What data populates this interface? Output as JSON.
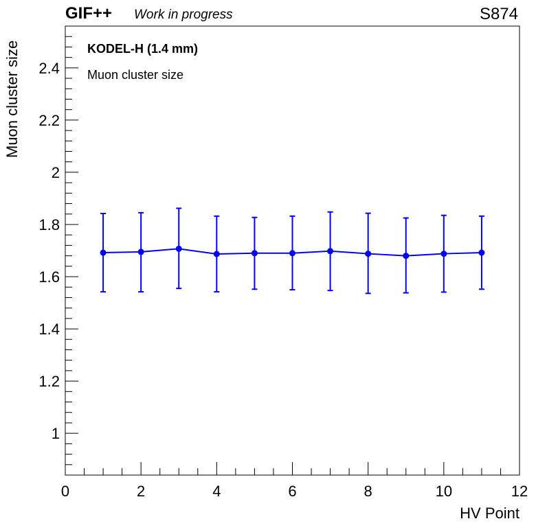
{
  "header": {
    "experiment": "GIF++",
    "status": "Work in progress",
    "run": "S874"
  },
  "annotations": {
    "detector": "KODEL-H (1.4 mm)",
    "quantity": "Muon cluster size"
  },
  "colors": {
    "series": "#0000ff",
    "axis": "#000000"
  },
  "chart_data": {
    "type": "line",
    "xlabel": "HV Point",
    "ylabel": "Muon cluster size",
    "xlim": [
      0,
      12
    ],
    "ylim": [
      0.84,
      2.56
    ],
    "xticks": [
      0,
      2,
      4,
      6,
      8,
      10,
      12
    ],
    "yticks": [
      1,
      1.2,
      1.4,
      1.6,
      1.8,
      2,
      2.2,
      2.4
    ],
    "grid": false,
    "series": [
      {
        "x": [
          1,
          2,
          3,
          4,
          5,
          6,
          7,
          8,
          9,
          10,
          11
        ],
        "y": [
          1.692,
          1.695,
          1.707,
          1.687,
          1.69,
          1.69,
          1.698,
          1.688,
          1.68,
          1.688,
          1.692
        ],
        "yerr_low": [
          0.15,
          0.153,
          0.152,
          0.145,
          0.138,
          0.14,
          0.151,
          0.152,
          0.142,
          0.147,
          0.14
        ],
        "yerr_high": [
          0.15,
          0.15,
          0.155,
          0.145,
          0.137,
          0.142,
          0.15,
          0.155,
          0.145,
          0.147,
          0.14
        ]
      }
    ]
  }
}
